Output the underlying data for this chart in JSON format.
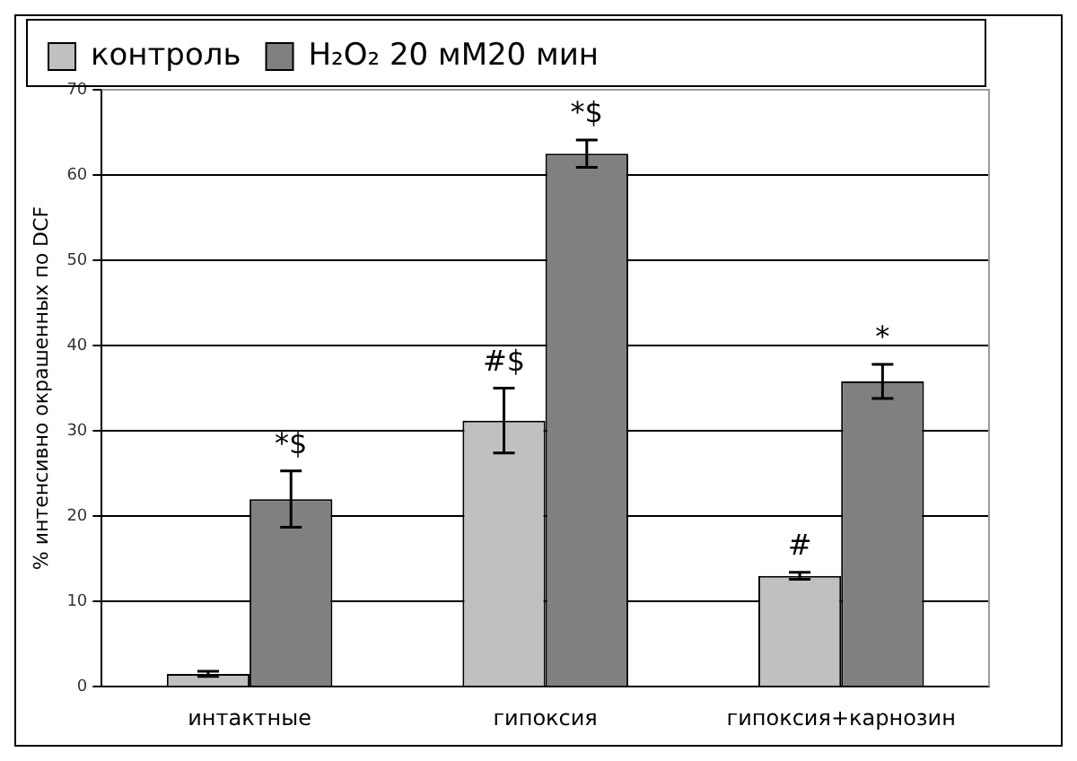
{
  "chart_data": {
    "type": "bar",
    "ylabel": "% интенсивно окрашенных по DCF",
    "categories": [
      "интактные",
      "гипоксия",
      "гипоксия+карнозин"
    ],
    "series": [
      {
        "name": "контроль",
        "color": "#c0c0c0",
        "values": [
          1.5,
          31.2,
          13
        ],
        "errors": [
          0.3,
          3.8,
          0.4
        ]
      },
      {
        "name": "H₂O₂ 20 мМ20 мин",
        "color": "#808080",
        "values": [
          22,
          62.5,
          35.8
        ],
        "errors": [
          3.3,
          1.6,
          2
        ]
      }
    ],
    "ylim": [
      0,
      70
    ],
    "yticks": [
      0,
      10,
      20,
      30,
      40,
      50,
      60,
      70
    ],
    "grid": "y",
    "legend": "top left",
    "annotations": [
      {
        "text": "*$",
        "x": "интактные",
        "y": 22
      },
      {
        "text": "#$",
        "x": "гипоксия",
        "y": 31.2
      },
      {
        "text": "*$",
        "x": "гипоксия",
        "y": 62.5
      },
      {
        "text": "#",
        "x": "гипоксия+карнозин",
        "y": 13
      },
      {
        "text": "*",
        "x": "гипоксия+карнозин",
        "y": 35.8
      }
    ]
  }
}
